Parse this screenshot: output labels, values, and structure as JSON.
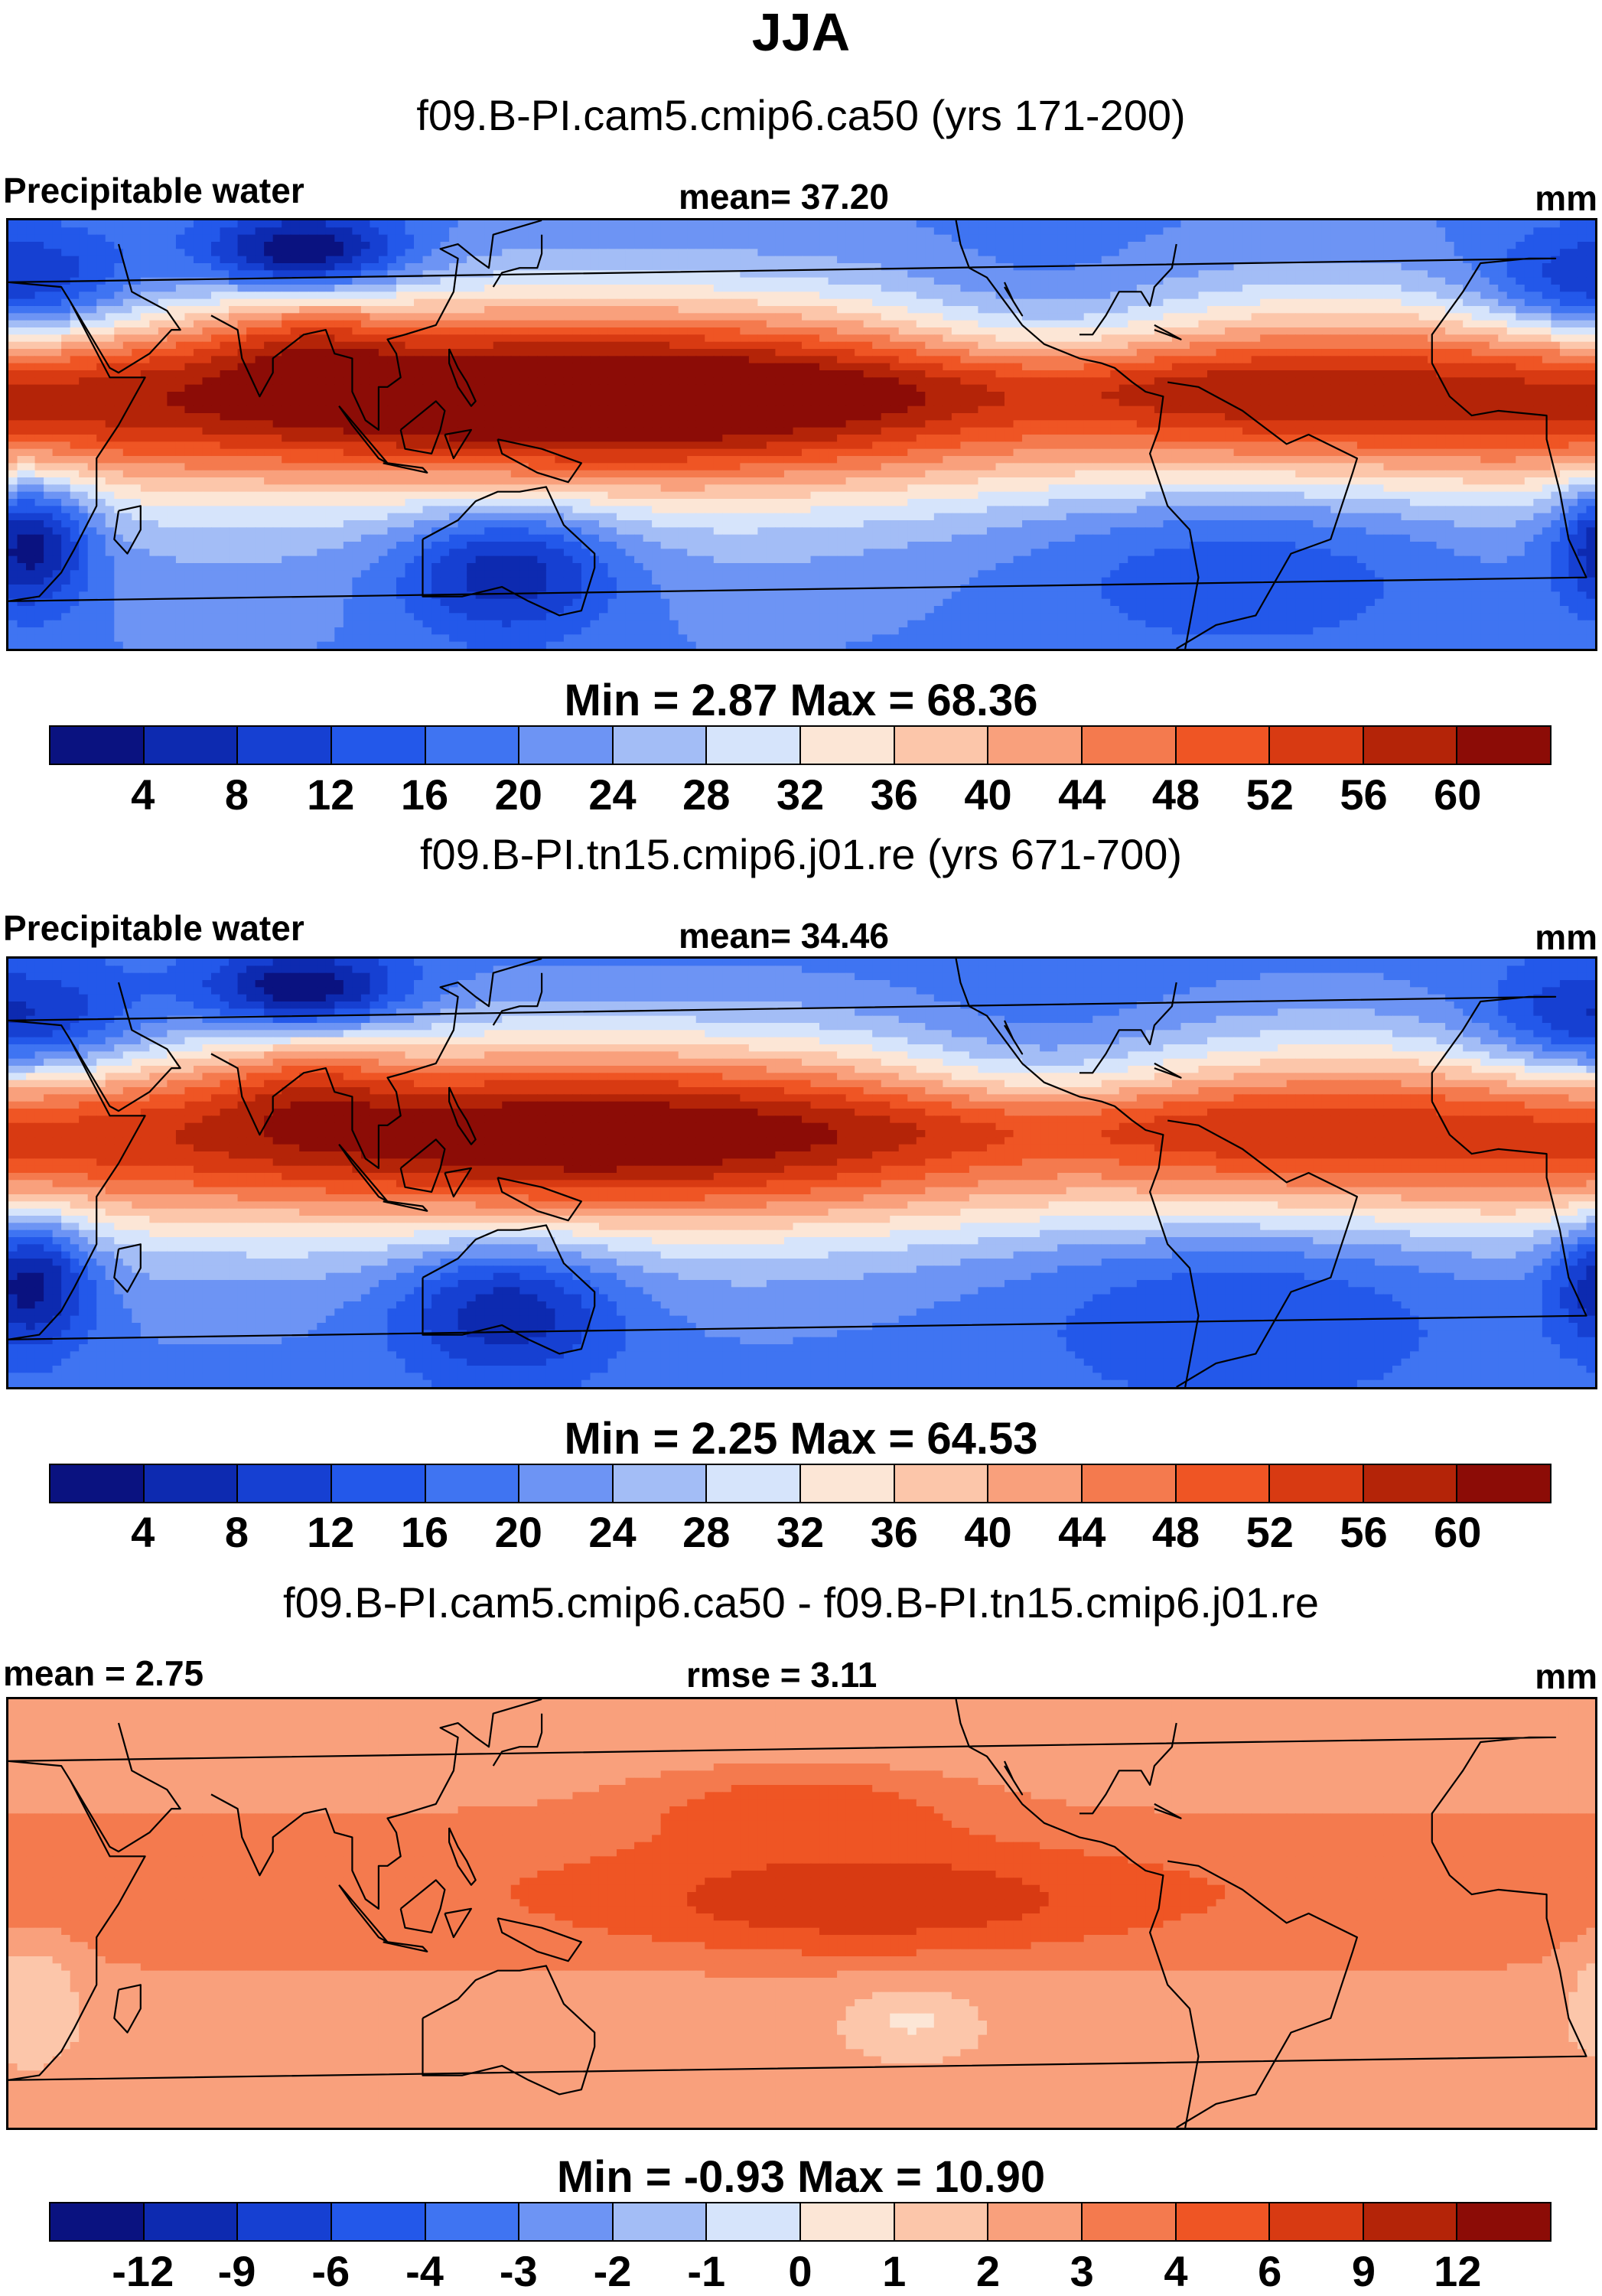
{
  "main_title": "JJA",
  "panels": [
    {
      "case_title": "f09.B-PI.cam5.cmip6.ca50 (yrs 171-200)",
      "left_string": "Precipitable water",
      "center_string": "mean=  37.20",
      "right_string": "mm",
      "minmax": "Min =   2.87 Max =  68.36",
      "colorbar_labels": [
        "4",
        "8",
        "12",
        "16",
        "20",
        "24",
        "28",
        "32",
        "36",
        "40",
        "44",
        "48",
        "52",
        "56",
        "60"
      ],
      "field": "abs1"
    },
    {
      "case_title": "f09.B-PI.tn15.cmip6.j01.re (yrs 671-700)",
      "left_string": "Precipitable water",
      "center_string": "mean=  34.46",
      "right_string": "mm",
      "minmax": "Min =   2.25 Max =  64.53",
      "colorbar_labels": [
        "4",
        "8",
        "12",
        "16",
        "20",
        "24",
        "28",
        "32",
        "36",
        "40",
        "44",
        "48",
        "52",
        "56",
        "60"
      ],
      "field": "abs2"
    },
    {
      "case_title": "f09.B-PI.cam5.cmip6.ca50 - f09.B-PI.tn15.cmip6.j01.re",
      "left_string": "mean =   2.75",
      "center_string": "rmse =   3.11",
      "right_string": "mm",
      "minmax": "Min =  -0.93 Max =  10.90",
      "colorbar_labels": [
        "-12",
        "-9",
        "-6",
        "-4",
        "-3",
        "-2",
        "-1",
        "0",
        "1",
        "2",
        "3",
        "4",
        "6",
        "9",
        "12"
      ],
      "field": "diff"
    }
  ],
  "colors": {
    "palette": [
      "#0a1280",
      "#0d2ab0",
      "#1640d2",
      "#2358ea",
      "#3f74f2",
      "#6d94f4",
      "#a3bdf6",
      "#d6e4fb",
      "#fce6d6",
      "#fcc6aa",
      "#f9a07c",
      "#f47a4e",
      "#ef5524",
      "#d83a12",
      "#b42408",
      "#8c0c06"
    ],
    "coastline": "#000000"
  }
}
